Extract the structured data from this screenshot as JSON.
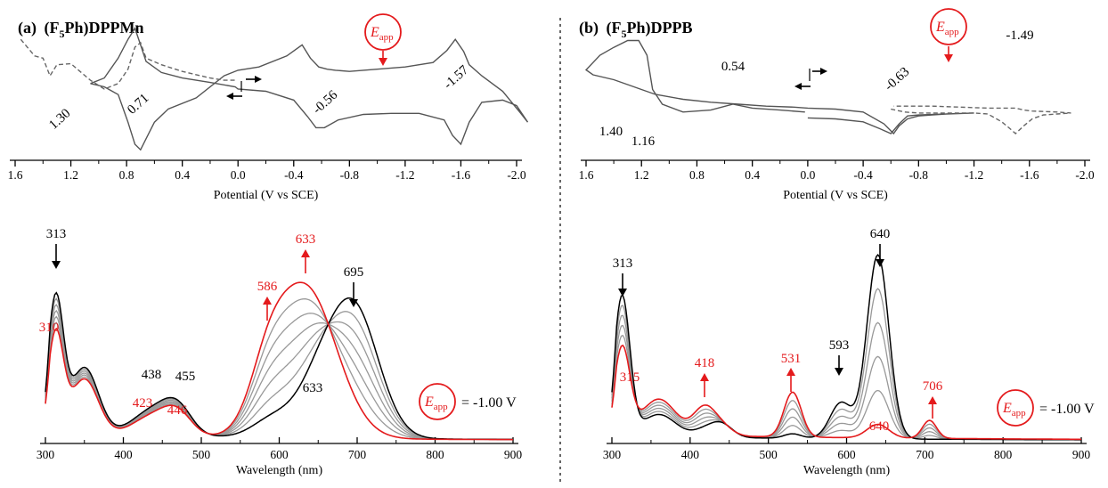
{
  "panel_a": {
    "tag": "(a)",
    "compound": {
      "pre": "(F",
      "sub": "5",
      "post": "Ph)DPPMn"
    }
  },
  "panel_b": {
    "tag": "(b)",
    "compound": {
      "pre": "(F",
      "sub": "5",
      "post": "Ph)DPPB"
    }
  },
  "eapp": {
    "main": "E",
    "sub": "app",
    "value_text": "= -1.00 V"
  },
  "colors": {
    "ink": "#000000",
    "accent": "#e41a1c",
    "gray": "#999999",
    "cv_line": "#555555"
  },
  "chart_data": [
    {
      "id": "cv_a",
      "type": "line",
      "xlabel": "Potential (V vs SCE)",
      "xlim": [
        1.6,
        -2.0
      ],
      "xticks": [
        "1.6",
        "1.2",
        "0.8",
        "0.4",
        "0.0",
        "-0.4",
        "-0.8",
        "-1.2",
        "-1.6",
        "-2.0"
      ],
      "peak_labels": [
        "1.30",
        "0.71",
        "-0.56",
        "-1.57"
      ],
      "series": [
        {
          "style": "solid",
          "x": [
            1.06,
            0.96,
            0.86,
            0.79,
            0.74,
            0.7,
            0.66,
            0.55,
            0.4,
            0.2,
            0.02,
            0.0,
            -0.2,
            -0.4,
            -0.5,
            -0.56,
            -0.62,
            -0.72,
            -0.9,
            -1.1,
            -1.3,
            -1.48,
            -1.54,
            -1.6,
            -1.66,
            -1.75,
            -1.9,
            -2.0,
            -2.08,
            -2.03,
            -1.9,
            -1.75,
            -1.66,
            -1.62,
            -1.56,
            -1.5,
            -1.4,
            -1.2,
            -1.0,
            -0.8,
            -0.7,
            -0.64,
            -0.58,
            -0.52,
            -0.46,
            -0.35,
            -0.15,
            0.0,
            0.1,
            0.3,
            0.5,
            0.6,
            0.66,
            0.7,
            0.74,
            0.79,
            0.86,
            0.96,
            1.06
          ],
          "y": [
            0.55,
            0.6,
            0.78,
            0.95,
            1.05,
            0.9,
            0.75,
            0.65,
            0.6,
            0.56,
            0.52,
            0.5,
            0.48,
            0.4,
            0.25,
            0.15,
            0.15,
            0.22,
            0.27,
            0.28,
            0.28,
            0.22,
            0.08,
            0.0,
            0.2,
            0.38,
            0.4,
            0.35,
            0.2,
            0.28,
            0.48,
            0.62,
            0.72,
            0.84,
            0.95,
            0.85,
            0.74,
            0.7,
            0.68,
            0.66,
            0.67,
            0.68,
            0.7,
            0.78,
            0.9,
            0.8,
            0.7,
            0.67,
            0.62,
            0.42,
            0.32,
            0.2,
            0.05,
            -0.05,
            0.0,
            0.2,
            0.45,
            0.52,
            0.55
          ]
        },
        {
          "style": "dashed",
          "x": [
            1.56,
            1.46,
            1.4,
            1.35,
            1.3,
            1.2,
            1.06,
            0.96,
            0.86,
            0.79,
            0.74,
            0.7,
            0.66,
            0.55,
            0.4,
            0.2,
            0.1,
            0.02
          ],
          "y": [
            0.95,
            0.8,
            0.78,
            0.62,
            0.72,
            0.73,
            0.58,
            0.5,
            0.55,
            0.68,
            0.88,
            0.92,
            0.78,
            0.72,
            0.66,
            0.6,
            0.58,
            0.58
          ]
        }
      ]
    },
    {
      "id": "cv_b",
      "type": "line",
      "xlabel": "Potential (V vs SCE)",
      "xlim": [
        1.6,
        -2.0
      ],
      "xticks": [
        "1.6",
        "1.2",
        "0.8",
        "0.4",
        "0.0",
        "-0.4",
        "-0.8",
        "-1.2",
        "-1.6",
        "-2.0"
      ],
      "peak_labels": [
        "0.54",
        "-0.63",
        "-1.49",
        "1.40",
        "1.16"
      ],
      "series": [
        {
          "style": "solid",
          "x": [
            0.02,
            0.2,
            0.4,
            0.54,
            0.7,
            0.9,
            1.05,
            1.12,
            1.16,
            1.22,
            1.3,
            1.4,
            1.5,
            1.6,
            1.55,
            1.4,
            1.3,
            1.2,
            1.1,
            0.9,
            0.7,
            0.5,
            0.3,
            0.1,
            0.0,
            -0.2,
            -0.4,
            -0.55,
            -0.62,
            -0.66,
            -0.72,
            -0.8,
            -0.9,
            -1.0,
            -1.2,
            -1.0,
            -0.8,
            -0.72,
            -0.66,
            -0.6,
            -0.52,
            -0.4,
            -0.2,
            0.0
          ],
          "y": [
            0.22,
            0.24,
            0.26,
            0.3,
            0.24,
            0.22,
            0.3,
            0.45,
            0.8,
            0.95,
            0.95,
            0.88,
            0.8,
            0.65,
            0.6,
            0.55,
            0.5,
            0.45,
            0.4,
            0.35,
            0.32,
            0.3,
            0.28,
            0.27,
            0.26,
            0.25,
            0.22,
            0.1,
            0.0,
            0.08,
            0.15,
            0.18,
            0.19,
            0.2,
            0.21,
            0.2,
            0.19,
            0.18,
            0.1,
            0.0,
            0.05,
            0.12,
            0.15,
            0.16
          ]
        },
        {
          "style": "dashed",
          "x": [
            -0.6,
            -0.7,
            -0.8,
            -0.9,
            -1.0,
            -1.1,
            -1.2,
            -1.3,
            -1.4,
            -1.46,
            -1.5,
            -1.56,
            -1.62,
            -1.7,
            -1.8,
            -1.9,
            -1.8,
            -1.62,
            -1.56,
            -1.5,
            -1.44,
            -1.3,
            -1.1,
            -0.9,
            -0.75,
            -0.62
          ],
          "y": [
            0.25,
            0.22,
            0.21,
            0.21,
            0.21,
            0.21,
            0.21,
            0.2,
            0.12,
            0.05,
            0.0,
            0.08,
            0.15,
            0.19,
            0.2,
            0.21,
            0.22,
            0.23,
            0.24,
            0.26,
            0.26,
            0.26,
            0.27,
            0.28,
            0.28,
            0.28
          ]
        }
      ]
    },
    {
      "id": "uv_a",
      "type": "line",
      "xlabel": "Wavelength (nm)",
      "xlim": [
        300,
        900
      ],
      "xticks": [
        "300",
        "400",
        "500",
        "600",
        "700",
        "800",
        "900"
      ],
      "peaks": {
        "black": [
          "313",
          "438",
          "455",
          "695",
          "633"
        ],
        "red": [
          "310",
          "423",
          "446",
          "586",
          "633"
        ]
      },
      "bands": [
        {
          "center": 313,
          "width": 10,
          "start": 0.75,
          "end": 0.56
        },
        {
          "center": 350,
          "width": 18,
          "start": 0.38,
          "end": 0.32
        },
        {
          "center": 440,
          "width": 28,
          "start": 0.15,
          "end": 0.12
        },
        {
          "center": 470,
          "width": 18,
          "start": 0.12,
          "end": 0.1
        },
        {
          "center": 633,
          "width": 40,
          "start": 0.16,
          "end": 0.85
        },
        {
          "center": 585,
          "width": 22,
          "start": 0.04,
          "end": 0.22
        },
        {
          "center": 695,
          "width": 32,
          "start": 0.72,
          "end": 0.0
        },
        {
          "center": 650,
          "width": 22,
          "start": 0.1,
          "end": 0.0
        }
      ],
      "baseline": {
        "start": 0.035,
        "end": 0.03
      },
      "curve_count": 7
    },
    {
      "id": "uv_b",
      "type": "line",
      "xlabel": "Wavelength (nm)",
      "xlim": [
        300,
        900
      ],
      "xticks": [
        "300",
        "400",
        "500",
        "600",
        "700",
        "800",
        "900"
      ],
      "peaks": {
        "black": [
          "313",
          "593",
          "640"
        ],
        "red": [
          "315",
          "418",
          "531",
          "706",
          "640"
        ]
      },
      "bands": [
        {
          "center": 313,
          "width": 10,
          "start": 0.62,
          "end": 0.38
        },
        {
          "center": 360,
          "width": 22,
          "start": 0.1,
          "end": 0.16
        },
        {
          "center": 418,
          "width": 14,
          "start": 0.03,
          "end": 0.12
        },
        {
          "center": 440,
          "width": 14,
          "start": 0.06,
          "end": 0.04
        },
        {
          "center": 531,
          "width": 11,
          "start": 0.02,
          "end": 0.2
        },
        {
          "center": 593,
          "width": 14,
          "start": 0.16,
          "end": 0.0
        },
        {
          "center": 640,
          "width": 14,
          "start": 0.82,
          "end": 0.06
        },
        {
          "center": 706,
          "width": 9,
          "start": 0.0,
          "end": 0.08
        }
      ],
      "baseline": {
        "start": 0.02,
        "end": 0.03
      },
      "curve_count": 6
    }
  ]
}
